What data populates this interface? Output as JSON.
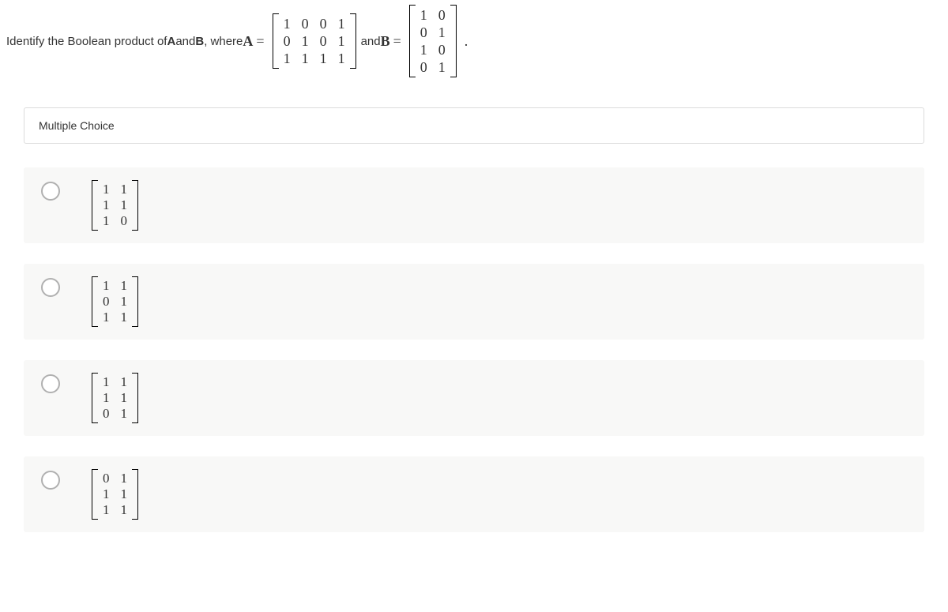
{
  "question": {
    "prefix": "Identify the Boolean product of ",
    "boldA": "A",
    "and_word": " and ",
    "boldB": "B",
    "where": ", where ",
    "varA": "A",
    "eq1": "=",
    "and_text": " and ",
    "varB": "B",
    "eq2": "=",
    "period": "."
  },
  "matrix_A": {
    "rows": 3,
    "cols": 4,
    "values": [
      "1",
      "0",
      "0",
      "1",
      "0",
      "1",
      "0",
      "1",
      "1",
      "1",
      "1",
      "1"
    ]
  },
  "matrix_B": {
    "rows": 4,
    "cols": 2,
    "values": [
      "1",
      "0",
      "0",
      "1",
      "1",
      "0",
      "0",
      "1"
    ]
  },
  "mc_label": "Multiple Choice",
  "options": [
    {
      "rows": 3,
      "cols": 2,
      "values": [
        "1",
        "1",
        "1",
        "1",
        "1",
        "0"
      ]
    },
    {
      "rows": 3,
      "cols": 2,
      "values": [
        "1",
        "1",
        "0",
        "1",
        "1",
        "1"
      ]
    },
    {
      "rows": 3,
      "cols": 2,
      "values": [
        "1",
        "1",
        "1",
        "1",
        "0",
        "1"
      ]
    },
    {
      "rows": 3,
      "cols": 2,
      "values": [
        "0",
        "1",
        "1",
        "1",
        "1",
        "1"
      ]
    }
  ],
  "colors": {
    "option_bg": "#f8f8f7",
    "border": "#dcdcdc",
    "radio_border": "#b0b0b0",
    "text": "#333333"
  }
}
